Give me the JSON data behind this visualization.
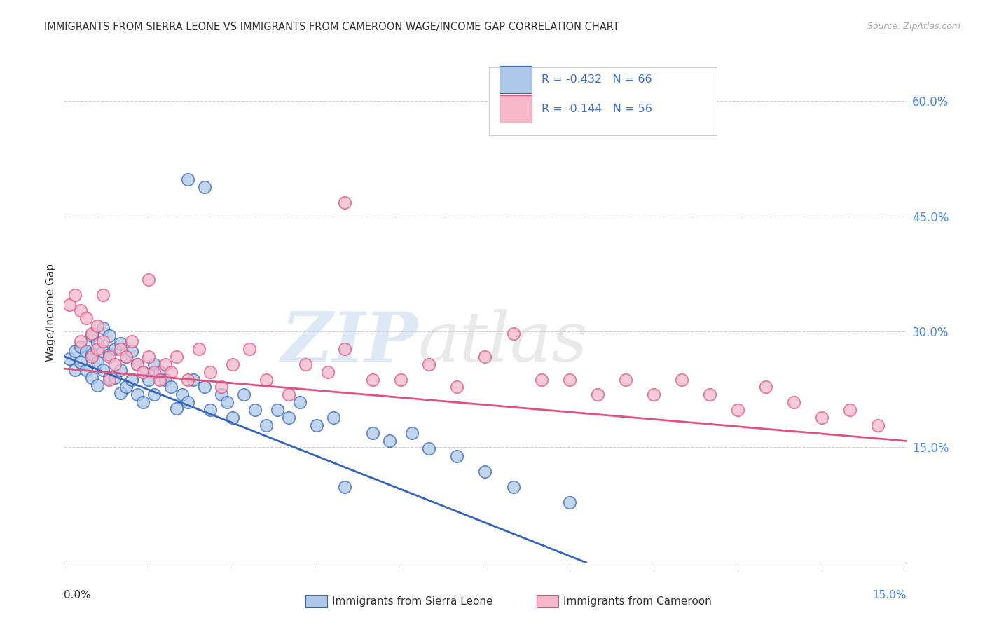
{
  "title": "IMMIGRANTS FROM SIERRA LEONE VS IMMIGRANTS FROM CAMEROON WAGE/INCOME GAP CORRELATION CHART",
  "source": "Source: ZipAtlas.com",
  "ylabel": "Wage/Income Gap",
  "right_yticks": [
    0.15,
    0.3,
    0.45,
    0.6
  ],
  "watermark_zip": "ZIP",
  "watermark_atlas": "atlas",
  "sierra_leone_color": "#adc8e8",
  "cameroon_color": "#f5b8cb",
  "trend_sierra_color": "#3366bb",
  "trend_cameroon_color": "#e05080",
  "background_color": "#ffffff",
  "legend_text_color": "#3a6fd8",
  "legend_border_color": "#cccccc",
  "right_tick_color": "#4488ee",
  "sierra_leone_x": [
    0.001,
    0.002,
    0.002,
    0.003,
    0.003,
    0.004,
    0.004,
    0.005,
    0.005,
    0.005,
    0.006,
    0.006,
    0.006,
    0.007,
    0.007,
    0.007,
    0.008,
    0.008,
    0.008,
    0.009,
    0.009,
    0.01,
    0.01,
    0.01,
    0.011,
    0.011,
    0.012,
    0.012,
    0.013,
    0.013,
    0.014,
    0.014,
    0.015,
    0.016,
    0.016,
    0.017,
    0.018,
    0.019,
    0.02,
    0.021,
    0.022,
    0.023,
    0.025,
    0.026,
    0.028,
    0.029,
    0.03,
    0.032,
    0.034,
    0.036,
    0.038,
    0.04,
    0.042,
    0.045,
    0.048,
    0.05,
    0.055,
    0.058,
    0.062,
    0.065,
    0.07,
    0.075,
    0.08,
    0.09,
    0.022,
    0.025
  ],
  "sierra_leone_y": [
    0.265,
    0.275,
    0.25,
    0.28,
    0.26,
    0.275,
    0.25,
    0.295,
    0.27,
    0.24,
    0.285,
    0.26,
    0.23,
    0.305,
    0.275,
    0.25,
    0.295,
    0.27,
    0.24,
    0.278,
    0.24,
    0.285,
    0.25,
    0.22,
    0.268,
    0.228,
    0.275,
    0.238,
    0.258,
    0.218,
    0.248,
    0.208,
    0.238,
    0.258,
    0.218,
    0.248,
    0.238,
    0.228,
    0.2,
    0.218,
    0.208,
    0.238,
    0.228,
    0.198,
    0.218,
    0.208,
    0.188,
    0.218,
    0.198,
    0.178,
    0.198,
    0.188,
    0.208,
    0.178,
    0.188,
    0.098,
    0.168,
    0.158,
    0.168,
    0.148,
    0.138,
    0.118,
    0.098,
    0.078,
    0.498,
    0.488
  ],
  "cameroon_x": [
    0.001,
    0.002,
    0.003,
    0.003,
    0.004,
    0.005,
    0.005,
    0.006,
    0.006,
    0.007,
    0.007,
    0.008,
    0.008,
    0.009,
    0.01,
    0.011,
    0.012,
    0.013,
    0.014,
    0.015,
    0.016,
    0.017,
    0.018,
    0.019,
    0.02,
    0.022,
    0.024,
    0.026,
    0.028,
    0.03,
    0.033,
    0.036,
    0.04,
    0.043,
    0.047,
    0.05,
    0.055,
    0.06,
    0.065,
    0.07,
    0.075,
    0.08,
    0.085,
    0.09,
    0.095,
    0.1,
    0.105,
    0.11,
    0.115,
    0.12,
    0.125,
    0.13,
    0.135,
    0.14,
    0.145,
    0.015
  ],
  "cameroon_y": [
    0.335,
    0.348,
    0.328,
    0.288,
    0.318,
    0.298,
    0.268,
    0.308,
    0.278,
    0.348,
    0.288,
    0.268,
    0.238,
    0.258,
    0.278,
    0.268,
    0.288,
    0.258,
    0.248,
    0.268,
    0.248,
    0.238,
    0.258,
    0.248,
    0.268,
    0.238,
    0.278,
    0.248,
    0.228,
    0.258,
    0.278,
    0.238,
    0.218,
    0.258,
    0.248,
    0.278,
    0.238,
    0.238,
    0.258,
    0.228,
    0.268,
    0.298,
    0.238,
    0.238,
    0.218,
    0.238,
    0.218,
    0.238,
    0.218,
    0.198,
    0.228,
    0.208,
    0.188,
    0.198,
    0.178,
    0.368
  ],
  "extra_cam_x": [
    0.05
  ],
  "extra_cam_y": [
    0.468
  ],
  "xmin": 0.0,
  "xmax": 0.15,
  "ymin": 0.0,
  "ymax": 0.65,
  "trend_sl_x0": 0.0,
  "trend_sl_y0": 0.268,
  "trend_sl_x1": 0.093,
  "trend_sl_y1": 0.0,
  "trend_cam_x0": 0.0,
  "trend_cam_y0": 0.252,
  "trend_cam_x1": 0.15,
  "trend_cam_y1": 0.158
}
